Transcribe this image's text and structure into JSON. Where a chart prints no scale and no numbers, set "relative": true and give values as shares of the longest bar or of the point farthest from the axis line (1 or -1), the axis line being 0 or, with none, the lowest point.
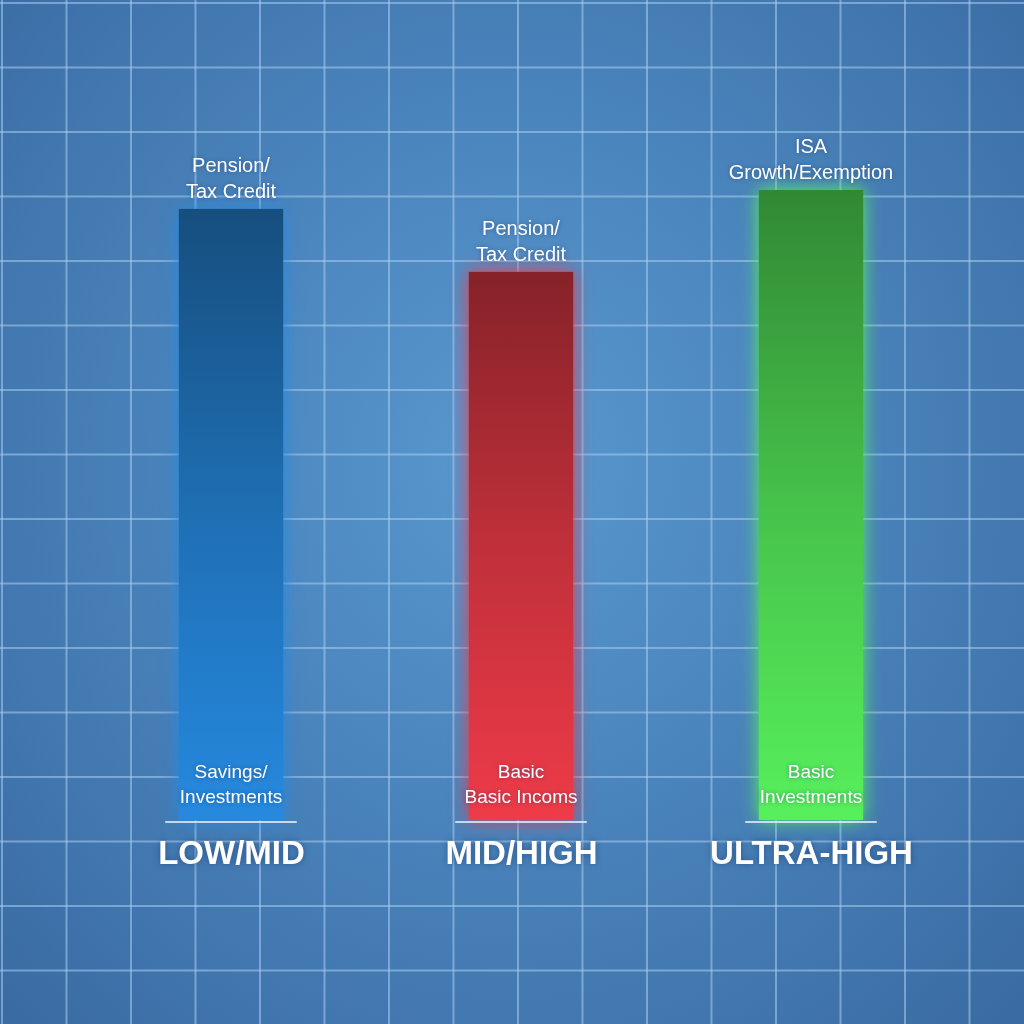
{
  "chart_data": {
    "type": "bar",
    "relative": true,
    "categories": [
      "LOW/MID",
      "MID/HIGH",
      "ULTRA-HIGH"
    ],
    "values": [
      0.97,
      0.87,
      1
    ],
    "colors": [
      "#1f6fb4",
      "#c0303a",
      "#46c24a"
    ],
    "annotations": [
      {
        "text": "Pension/\nTax Credit",
        "x": "LOW/MID",
        "y": 0.97
      },
      {
        "text": "Savings/\nInvestments",
        "x": "LOW/MID",
        "y": 0
      },
      {
        "text": "Pension/\nTax Credit",
        "x": "MID/HIGH",
        "y": 0.87
      },
      {
        "text": "Basic\nBasic Incoms",
        "x": "MID/HIGH",
        "y": 0
      },
      {
        "text": "ISA\nGrowth/Exemption",
        "x": "ULTRA-HIGH",
        "y": 1
      },
      {
        "text": "Basic\nInvestments",
        "x": "ULTRA-HIGH",
        "y": 0
      }
    ]
  }
}
